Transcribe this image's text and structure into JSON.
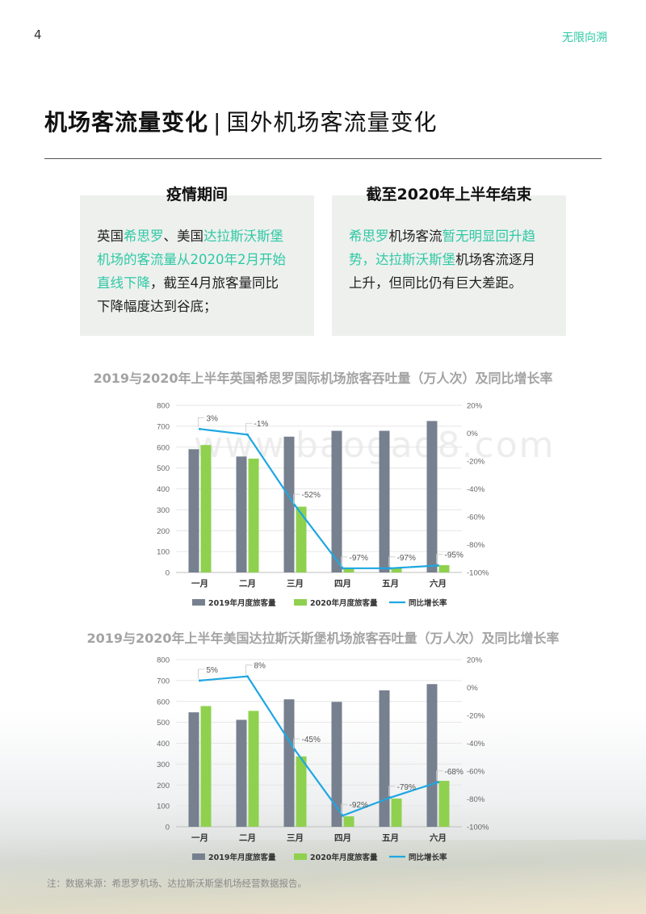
{
  "header": {
    "page_number": "4",
    "brand": "无限向溯"
  },
  "title": {
    "main": "机场客流量变化",
    "separator": "|",
    "sub": "国外机场客流量变化"
  },
  "boxes": [
    {
      "title": "疫情期间",
      "lines": [
        [
          {
            "t": "英国",
            "hl": false
          },
          {
            "t": "希思罗",
            "hl": true
          },
          {
            "t": "、美国",
            "hl": false
          },
          {
            "t": "达拉斯沃斯堡",
            "hl": true
          }
        ],
        [
          {
            "t": "机场的客流量从2020年2月开始",
            "hl": true
          }
        ],
        [
          {
            "t": "直线下降",
            "hl": true
          },
          {
            "t": "，截至4月旅客量同比",
            "hl": false
          }
        ],
        [
          {
            "t": "下降幅度达到谷底；",
            "hl": false
          }
        ]
      ]
    },
    {
      "title": "截至2020年上半年结束",
      "lines": [
        [
          {
            "t": "希思罗",
            "hl": true
          },
          {
            "t": "机场客流",
            "hl": false
          },
          {
            "t": "暂无明显回升趋",
            "hl": true
          }
        ],
        [
          {
            "t": "势，",
            "hl": true
          },
          {
            "t": "达拉斯沃斯堡",
            "hl": true
          },
          {
            "t": "机场客流逐月",
            "hl": false
          }
        ],
        [
          {
            "t": "上升，但同比仍有巨大差距。",
            "hl": false
          }
        ]
      ]
    }
  ],
  "watermark": "www.baogao8.com",
  "note": "注：数据来源：希思罗机场、达拉斯沃斯堡机场经营数据报告。",
  "colors": {
    "accent": "#2ec9a4",
    "bar2019": "#76808f",
    "bar2020": "#8fd14f",
    "line": "#1ea7e1"
  },
  "chart_data": [
    {
      "type": "bar",
      "title": "2019与2020年上半年英国希思罗国际机场旅客吞吐量（万人次）及同比增长率",
      "categories": [
        "一月",
        "二月",
        "三月",
        "四月",
        "五月",
        "六月"
      ],
      "series": [
        {
          "name": "2019年月度旅客量",
          "type": "bar",
          "axis": "left",
          "values": [
            590,
            555,
            650,
            678,
            678,
            725
          ]
        },
        {
          "name": "2020年月度旅客量",
          "type": "bar",
          "axis": "left",
          "values": [
            610,
            545,
            315,
            20,
            20,
            35
          ]
        },
        {
          "name": "同比增长率",
          "type": "line",
          "axis": "right",
          "values": [
            3,
            -1,
            -52,
            -97,
            -97,
            -95
          ],
          "labels": [
            "3%",
            "-1%",
            "-52%",
            "-97%",
            "-97%",
            "-95%"
          ]
        }
      ],
      "ylim_left": [
        0,
        800
      ],
      "yticks_left": [
        "0",
        "100",
        "200",
        "300",
        "400",
        "500",
        "600",
        "700",
        "800"
      ],
      "ylim_right": [
        -100,
        20
      ],
      "yticks_right": [
        "-100%",
        "-80%",
        "-60%",
        "-40%",
        "-20%",
        "0%",
        "20%"
      ],
      "legend": "bottom",
      "grid": true
    },
    {
      "type": "bar",
      "title": "2019与2020年上半年美国达拉斯沃斯堡机场旅客吞吐量（万人次）及同比增长率",
      "categories": [
        "一月",
        "二月",
        "三月",
        "四月",
        "五月",
        "六月"
      ],
      "series": [
        {
          "name": "2019年月度旅客量",
          "type": "bar",
          "axis": "left",
          "values": [
            548,
            512,
            610,
            598,
            653,
            683
          ]
        },
        {
          "name": "2020年月度旅客量",
          "type": "bar",
          "axis": "left",
          "values": [
            578,
            555,
            337,
            50,
            135,
            220
          ]
        },
        {
          "name": "同比增长率",
          "type": "line",
          "axis": "right",
          "values": [
            5,
            8,
            -45,
            -92,
            -79,
            -68
          ],
          "labels": [
            "5%",
            "8%",
            "-45%",
            "-92%",
            "-79%",
            "-68%"
          ]
        }
      ],
      "ylim_left": [
        0,
        800
      ],
      "yticks_left": [
        "0",
        "100",
        "200",
        "300",
        "400",
        "500",
        "600",
        "700",
        "800"
      ],
      "ylim_right": [
        -100,
        20
      ],
      "yticks_right": [
        "-100%",
        "-80%",
        "-60%",
        "-40%",
        "-20%",
        "0%",
        "20%"
      ],
      "legend": "bottom",
      "grid": true
    }
  ]
}
